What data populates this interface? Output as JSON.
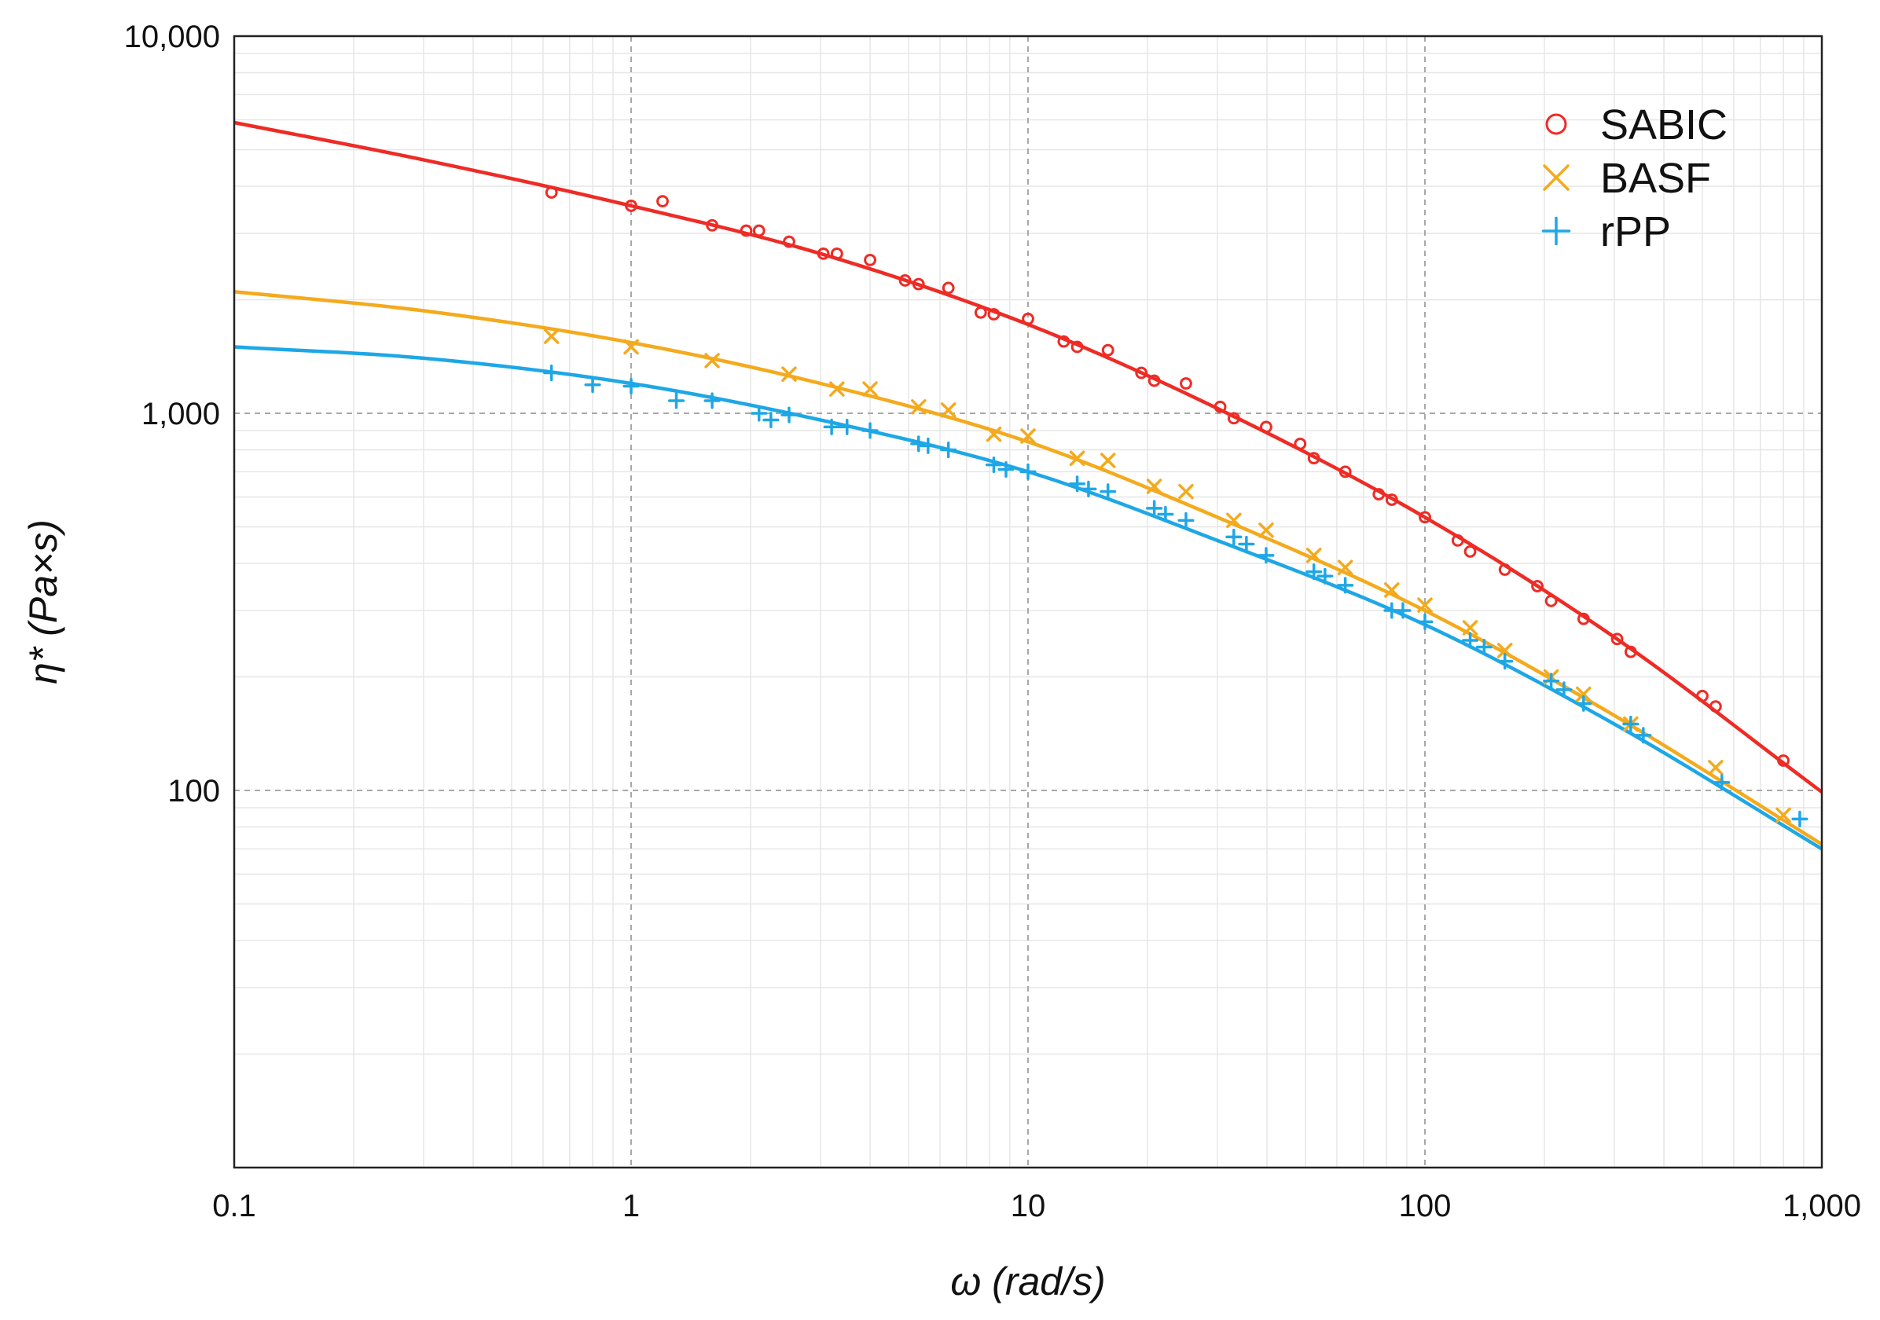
{
  "chart_data": {
    "type": "scatter",
    "title": "",
    "xlabel": "ω (rad/s)",
    "ylabel": "η* (Pa×s)",
    "x_scale": "log",
    "y_scale": "log",
    "xlim": [
      0.1,
      1000
    ],
    "ylim": [
      10,
      10000
    ],
    "x_ticks": [
      0.1,
      1,
      10,
      100,
      1000
    ],
    "x_tick_labels": [
      "0.1",
      "1",
      "10",
      "100",
      "1,000"
    ],
    "y_ticks": [
      100,
      1000,
      10000
    ],
    "y_tick_labels": [
      "100",
      "1,000",
      "10,000"
    ],
    "grid": true,
    "legend_position": "top-right",
    "series": [
      {
        "name": "SABIC",
        "color": "#ee2b25",
        "marker": "circle",
        "points": [
          [
            0.63,
            3850
          ],
          [
            1,
            3550
          ],
          [
            1.2,
            3650
          ],
          [
            1.6,
            3150
          ],
          [
            1.95,
            3050
          ],
          [
            2.1,
            3050
          ],
          [
            2.5,
            2850
          ],
          [
            3.05,
            2650
          ],
          [
            3.3,
            2650
          ],
          [
            4,
            2550
          ],
          [
            4.9,
            2250
          ],
          [
            5.3,
            2200
          ],
          [
            6.3,
            2150
          ],
          [
            7.6,
            1850
          ],
          [
            8.2,
            1830
          ],
          [
            10,
            1780
          ],
          [
            12.3,
            1550
          ],
          [
            13.3,
            1500
          ],
          [
            15.9,
            1470
          ],
          [
            19.3,
            1280
          ],
          [
            20.8,
            1220
          ],
          [
            25,
            1200
          ],
          [
            30.5,
            1040
          ],
          [
            33,
            970
          ],
          [
            39.8,
            920
          ],
          [
            48.5,
            830
          ],
          [
            52.5,
            760
          ],
          [
            63,
            700
          ],
          [
            76.5,
            610
          ],
          [
            82.5,
            590
          ],
          [
            100,
            530
          ],
          [
            121,
            460
          ],
          [
            130,
            430
          ],
          [
            159,
            385
          ],
          [
            192,
            348
          ],
          [
            208,
            318
          ],
          [
            251,
            285
          ],
          [
            305,
            252
          ],
          [
            330,
            233
          ],
          [
            500,
            178
          ],
          [
            540,
            167
          ],
          [
            800,
            120
          ]
        ],
        "fit": [
          [
            0.1,
            5900
          ],
          [
            0.3,
            4700
          ],
          [
            1,
            3550
          ],
          [
            3,
            2650
          ],
          [
            10,
            1720
          ],
          [
            30,
            1030
          ],
          [
            100,
            530
          ],
          [
            300,
            255
          ],
          [
            1000,
            99
          ]
        ]
      },
      {
        "name": "BASF",
        "color": "#f4aa1d",
        "marker": "x",
        "points": [
          [
            0.63,
            1600
          ],
          [
            1,
            1500
          ],
          [
            1.6,
            1380
          ],
          [
            2.5,
            1270
          ],
          [
            3.3,
            1160
          ],
          [
            4,
            1160
          ],
          [
            5.3,
            1040
          ],
          [
            6.3,
            1020
          ],
          [
            8.2,
            880
          ],
          [
            10,
            870
          ],
          [
            13.3,
            760
          ],
          [
            15.9,
            750
          ],
          [
            20.8,
            640
          ],
          [
            25,
            620
          ],
          [
            33,
            520
          ],
          [
            39.8,
            490
          ],
          [
            52.5,
            420
          ],
          [
            63,
            390
          ],
          [
            82.5,
            340
          ],
          [
            100,
            310
          ],
          [
            130,
            270
          ],
          [
            159,
            235
          ],
          [
            208,
            200
          ],
          [
            251,
            180
          ],
          [
            330,
            150
          ],
          [
            540,
            115
          ],
          [
            800,
            86
          ]
        ],
        "fit": [
          [
            0.1,
            2100
          ],
          [
            0.3,
            1870
          ],
          [
            1,
            1540
          ],
          [
            3,
            1200
          ],
          [
            10,
            840
          ],
          [
            30,
            530
          ],
          [
            100,
            300
          ],
          [
            300,
            158
          ],
          [
            1000,
            72
          ]
        ]
      },
      {
        "name": "rPP",
        "color": "#1ea7e6",
        "marker": "plus",
        "points": [
          [
            0.63,
            1280
          ],
          [
            0.8,
            1190
          ],
          [
            1,
            1180
          ],
          [
            1.3,
            1080
          ],
          [
            1.6,
            1080
          ],
          [
            2.1,
            1000
          ],
          [
            2.25,
            960
          ],
          [
            2.5,
            990
          ],
          [
            3.2,
            920
          ],
          [
            3.5,
            920
          ],
          [
            4,
            900
          ],
          [
            5.3,
            830
          ],
          [
            5.6,
            820
          ],
          [
            6.3,
            800
          ],
          [
            8.2,
            730
          ],
          [
            8.8,
            710
          ],
          [
            10,
            700
          ],
          [
            13.3,
            650
          ],
          [
            14.2,
            630
          ],
          [
            15.9,
            620
          ],
          [
            20.8,
            560
          ],
          [
            22.2,
            540
          ],
          [
            25,
            520
          ],
          [
            33,
            470
          ],
          [
            35.5,
            450
          ],
          [
            39.8,
            420
          ],
          [
            52.5,
            380
          ],
          [
            56,
            370
          ],
          [
            63,
            350
          ],
          [
            82.5,
            300
          ],
          [
            88,
            300
          ],
          [
            100,
            280
          ],
          [
            130,
            250
          ],
          [
            141,
            240
          ],
          [
            159,
            220
          ],
          [
            208,
            195
          ],
          [
            224,
            185
          ],
          [
            251,
            170
          ],
          [
            330,
            150
          ],
          [
            355,
            140
          ],
          [
            560,
            105
          ],
          [
            880,
            84
          ]
        ],
        "fit": [
          [
            0.1,
            1500
          ],
          [
            0.3,
            1400
          ],
          [
            1,
            1200
          ],
          [
            3,
            960
          ],
          [
            10,
            700
          ],
          [
            30,
            460
          ],
          [
            100,
            275
          ],
          [
            300,
            150
          ],
          [
            1000,
            70
          ]
        ]
      }
    ]
  }
}
